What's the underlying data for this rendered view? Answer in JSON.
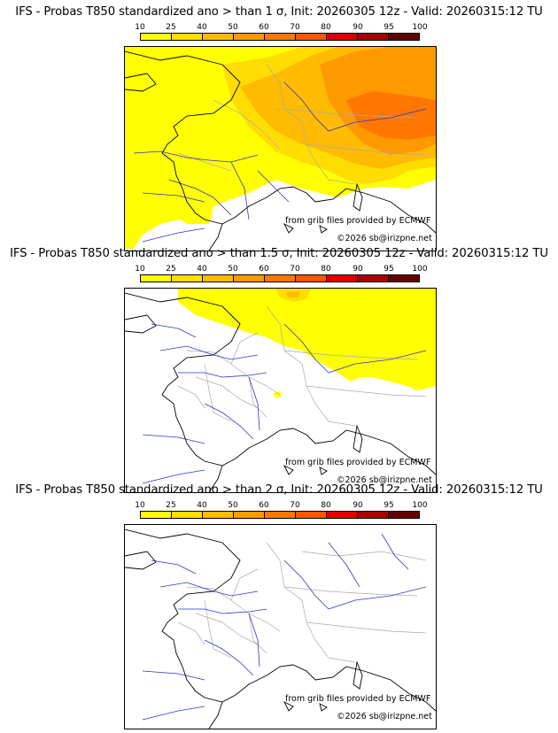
{
  "panels": [
    {
      "title": "IFS - Probas T850  standardized ano > than 1 σ, Init: 20260305 12z - Valid: 20260315:12 TU",
      "prob_coverage": "high",
      "source_credit": "from grib files provided by ECMWF",
      "copyright": "©2026 sb@irizpne.net"
    },
    {
      "title": "IFS - Probas T850  standardized ano > than 1.5 σ, Init: 20260305 12z - Valid: 20260315:12 TU",
      "prob_coverage": "medium",
      "source_credit": "from grib files provided by ECMWF",
      "copyright": "©2026 sb@irizpne.net"
    },
    {
      "title": "IFS - Probas T850  standardized ano > than 2 σ, Init: 20260305 12z - Valid: 20260315:12 TU",
      "prob_coverage": "none",
      "source_credit": "from grib files provided by ECMWF",
      "copyright": "©2026 sb@irizpne.net"
    }
  ],
  "legend": {
    "ticks": [
      "10",
      "25",
      "40",
      "50",
      "60",
      "70",
      "80",
      "90",
      "95",
      "100"
    ],
    "colors": [
      "#ffff00",
      "#ffdd00",
      "#ffbb00",
      "#ff9900",
      "#ff7700",
      "#ff5500",
      "#dd0000",
      "#aa0000",
      "#660000"
    ]
  },
  "map_colors": {
    "coast": "#000000",
    "rivers": "#3333cc",
    "borders": "#aaaaaa",
    "prob_10": "#ffff00",
    "prob_25": "#ffdd00",
    "prob_40": "#ffbb00",
    "prob_50": "#ff9900",
    "prob_60": "#ff7700"
  }
}
